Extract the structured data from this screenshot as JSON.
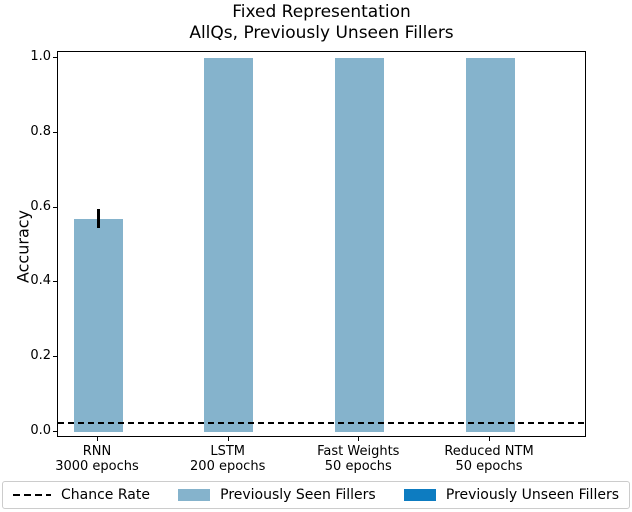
{
  "title": {
    "line1": "Fixed Representation",
    "line2": "AllQs, Previously Unseen Fillers"
  },
  "axes": {
    "ylabel": "Accuracy",
    "ytick_labels": [
      "0.0",
      "0.2",
      "0.4",
      "0.6",
      "0.8",
      "1.0"
    ],
    "ytick_values": [
      0.0,
      0.2,
      0.4,
      0.6,
      0.8,
      1.0
    ]
  },
  "chart_data": {
    "type": "bar",
    "title": "Fixed Representation\nAllQs, Previously Unseen Fillers",
    "xlabel": "",
    "ylabel": "Accuracy",
    "ylim": [
      0,
      1.0
    ],
    "grid": false,
    "legend_position": "bottom",
    "categories": [
      "RNN\n3000 epochs",
      "LSTM\n200 epochs",
      "Fast Weights\n50 epochs",
      "Reduced NTM\n50 epochs"
    ],
    "series": [
      {
        "name": "Previously Seen Fillers",
        "color": "#85b3cc",
        "values": [
          0.57,
          1.0,
          1.0,
          1.0
        ],
        "errors": [
          0.025,
          0,
          0,
          0
        ]
      },
      {
        "name": "Previously Unseen Fillers",
        "color": "#0d7cc1",
        "values": []
      }
    ],
    "chance_rate": {
      "label": "Chance Rate",
      "value": 0.025,
      "style": "dashed-black-line"
    }
  },
  "legend": {
    "items": [
      {
        "swatch": "dashed-line-icon",
        "color": "#000000",
        "label": "Chance Rate"
      },
      {
        "swatch": "patch-icon",
        "color": "#85b3cc",
        "label": "Previously Seen Fillers"
      },
      {
        "swatch": "patch-icon",
        "color": "#0d7cc1",
        "label": "Previously Unseen Fillers"
      }
    ]
  },
  "colors": {
    "bar_seen": "#85b3cc",
    "bar_unseen": "#0d7cc1",
    "line": "#000000",
    "legend_border": "#cccccc",
    "background": "#ffffff"
  }
}
